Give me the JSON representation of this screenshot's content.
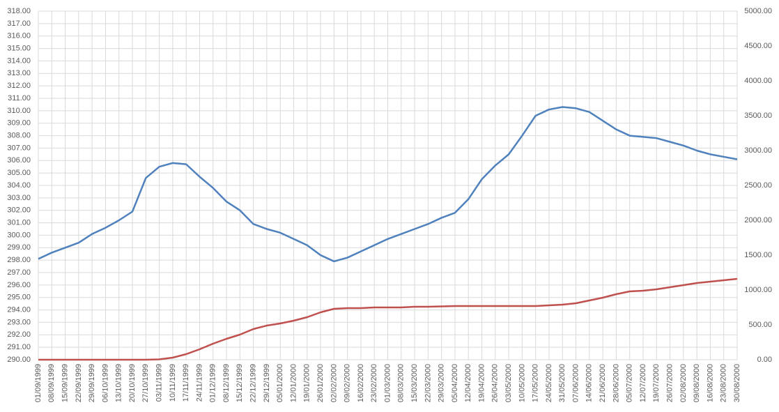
{
  "chart_data": {
    "type": "line",
    "categories": [
      "01/09/1999",
      "08/09/1999",
      "15/09/1999",
      "22/09/1999",
      "29/09/1999",
      "06/10/1999",
      "13/10/1999",
      "20/10/1999",
      "27/10/1999",
      "03/11/1999",
      "10/11/1999",
      "17/11/1999",
      "24/11/1999",
      "01/12/1999",
      "08/12/1999",
      "15/12/1999",
      "22/12/1999",
      "29/12/1999",
      "05/01/2000",
      "12/01/2000",
      "19/01/2000",
      "26/01/2000",
      "02/02/2000",
      "09/02/2000",
      "16/02/2000",
      "23/02/2000",
      "01/03/2000",
      "08/03/2000",
      "15/03/2000",
      "22/03/2000",
      "29/03/2000",
      "05/04/2000",
      "12/04/2000",
      "19/04/2000",
      "26/04/2000",
      "03/05/2000",
      "10/05/2000",
      "17/05/2000",
      "24/05/2000",
      "31/05/2000",
      "07/06/2000",
      "14/06/2000",
      "21/06/2000",
      "28/06/2000",
      "05/07/2000",
      "12/07/2000",
      "19/07/2000",
      "26/07/2000",
      "02/08/2000",
      "09/08/2000",
      "16/08/2000",
      "23/08/2000",
      "30/08/2000"
    ],
    "series": [
      {
        "color": "#4f81bd",
        "values": [
          298.1,
          298.6,
          299.0,
          299.4,
          300.1,
          300.6,
          301.2,
          301.9,
          304.6,
          305.5,
          305.8,
          305.7,
          304.7,
          303.8,
          302.7,
          302.0,
          300.9,
          300.5,
          300.2,
          299.7,
          299.2,
          298.4,
          297.9,
          298.2,
          298.7,
          299.2,
          299.7,
          300.1,
          300.5,
          300.9,
          301.4,
          301.8,
          302.9,
          304.5,
          305.6,
          306.5,
          308.0,
          309.6,
          310.1,
          310.3,
          310.2,
          309.9,
          309.2,
          308.5,
          308.0,
          307.9,
          307.8,
          307.5,
          307.2,
          306.8,
          306.5,
          306.3,
          306.1
        ]
      },
      {
        "color": "#c0504d",
        "axis": "y2",
        "values": [
          0,
          0,
          0,
          0,
          0,
          0,
          0,
          0,
          0,
          5,
          30,
          80,
          150,
          230,
          300,
          360,
          440,
          490,
          520,
          560,
          610,
          680,
          730,
          740,
          740,
          750,
          750,
          750,
          760,
          760,
          765,
          770,
          770,
          770,
          770,
          770,
          770,
          770,
          780,
          790,
          810,
          850,
          890,
          940,
          980,
          990,
          1010,
          1040,
          1070,
          1100,
          1120,
          1140,
          1160
        ]
      }
    ],
    "ylim": [
      290,
      318
    ],
    "yticks": [
      {
        "value": 290,
        "label": "290.00"
      },
      {
        "value": 291,
        "label": "291.00"
      },
      {
        "value": 292,
        "label": "292.00"
      },
      {
        "value": 293,
        "label": "293.00"
      },
      {
        "value": 294,
        "label": "294.00"
      },
      {
        "value": 295,
        "label": "295.00"
      },
      {
        "value": 296,
        "label": "296.00"
      },
      {
        "value": 297,
        "label": "297.00"
      },
      {
        "value": 298,
        "label": "298.00"
      },
      {
        "value": 299,
        "label": "299.00"
      },
      {
        "value": 300,
        "label": "300.00"
      },
      {
        "value": 301,
        "label": "301.00"
      },
      {
        "value": 302,
        "label": "302.00"
      },
      {
        "value": 303,
        "label": "303.00"
      },
      {
        "value": 304,
        "label": "304.00"
      },
      {
        "value": 305,
        "label": "305.00"
      },
      {
        "value": 306,
        "label": "306.00"
      },
      {
        "value": 307,
        "label": "307.00"
      },
      {
        "value": 308,
        "label": "308.00"
      },
      {
        "value": 309,
        "label": "309.00"
      },
      {
        "value": 310,
        "label": "310.00"
      },
      {
        "value": 311,
        "label": "311.00"
      },
      {
        "value": 312,
        "label": "312.00"
      },
      {
        "value": 313,
        "label": "313.00"
      },
      {
        "value": 314,
        "label": "314.00"
      },
      {
        "value": 315,
        "label": "315.00"
      },
      {
        "value": 316,
        "label": "316.00"
      },
      {
        "value": 317,
        "label": "317.00"
      },
      {
        "value": 318,
        "label": "318.00"
      }
    ],
    "y2lim": [
      0,
      5000
    ],
    "y2ticks": [
      {
        "value": 0,
        "label": "0.00"
      },
      {
        "value": 500,
        "label": "500.00"
      },
      {
        "value": 1000,
        "label": "1000.00"
      },
      {
        "value": 1500,
        "label": "1500.00"
      },
      {
        "value": 2000,
        "label": "2000.00"
      },
      {
        "value": 2500,
        "label": "2500.00"
      },
      {
        "value": 3000,
        "label": "3000.00"
      },
      {
        "value": 3500,
        "label": "3500.00"
      },
      {
        "value": 4000,
        "label": "4000.00"
      },
      {
        "value": 4500,
        "label": "4500.00"
      },
      {
        "value": 5000,
        "label": "5000.00"
      }
    ],
    "grid": true
  }
}
